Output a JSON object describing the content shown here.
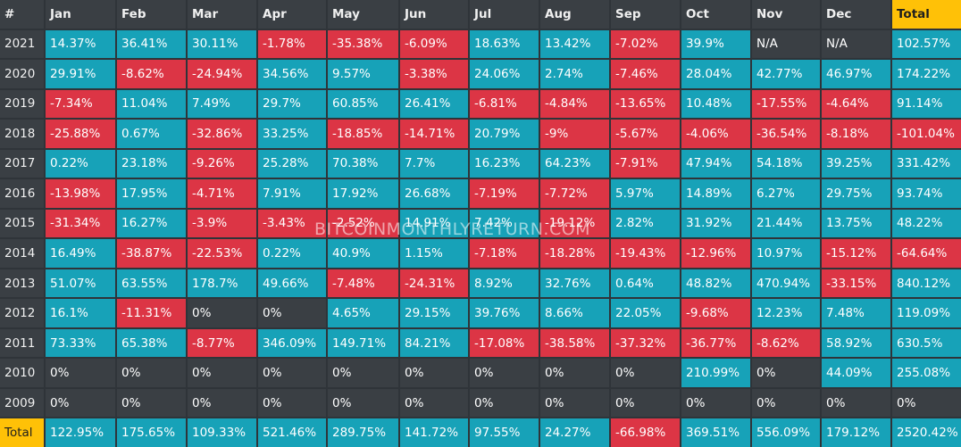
{
  "chart_data": {
    "type": "table",
    "header": [
      "#",
      "Jan",
      "Feb",
      "Mar",
      "Apr",
      "May",
      "Jun",
      "Jul",
      "Aug",
      "Sep",
      "Oct",
      "Nov",
      "Dec",
      "Total"
    ],
    "rows": [
      {
        "label": "2021",
        "values": [
          "14.37%",
          "36.41%",
          "30.11%",
          "-1.78%",
          "-35.38%",
          "-6.09%",
          "18.63%",
          "13.42%",
          "-7.02%",
          "39.9%",
          "N/A",
          "N/A",
          "102.57%"
        ]
      },
      {
        "label": "2020",
        "values": [
          "29.91%",
          "-8.62%",
          "-24.94%",
          "34.56%",
          "9.57%",
          "-3.38%",
          "24.06%",
          "2.74%",
          "-7.46%",
          "28.04%",
          "42.77%",
          "46.97%",
          "174.22%"
        ]
      },
      {
        "label": "2019",
        "values": [
          "-7.34%",
          "11.04%",
          "7.49%",
          "29.7%",
          "60.85%",
          "26.41%",
          "-6.81%",
          "-4.84%",
          "-13.65%",
          "10.48%",
          "-17.55%",
          "-4.64%",
          "91.14%"
        ]
      },
      {
        "label": "2018",
        "values": [
          "-25.88%",
          "0.67%",
          "-32.86%",
          "33.25%",
          "-18.85%",
          "-14.71%",
          "20.79%",
          "-9%",
          "-5.67%",
          "-4.06%",
          "-36.54%",
          "-8.18%",
          "-101.04%"
        ]
      },
      {
        "label": "2017",
        "values": [
          "0.22%",
          "23.18%",
          "-9.26%",
          "25.28%",
          "70.38%",
          "7.7%",
          "16.23%",
          "64.23%",
          "-7.91%",
          "47.94%",
          "54.18%",
          "39.25%",
          "331.42%"
        ]
      },
      {
        "label": "2016",
        "values": [
          "-13.98%",
          "17.95%",
          "-4.71%",
          "7.91%",
          "17.92%",
          "26.68%",
          "-7.19%",
          "-7.72%",
          "5.97%",
          "14.89%",
          "6.27%",
          "29.75%",
          "93.74%"
        ]
      },
      {
        "label": "2015",
        "values": [
          "-31.34%",
          "16.27%",
          "-3.9%",
          "-3.43%",
          "-2.52%",
          "14.91%",
          "7.42%",
          "-19.12%",
          "2.82%",
          "31.92%",
          "21.44%",
          "13.75%",
          "48.22%"
        ]
      },
      {
        "label": "2014",
        "values": [
          "16.49%",
          "-38.87%",
          "-22.53%",
          "0.22%",
          "40.9%",
          "1.15%",
          "-7.18%",
          "-18.28%",
          "-19.43%",
          "-12.96%",
          "10.97%",
          "-15.12%",
          "-64.64%"
        ]
      },
      {
        "label": "2013",
        "values": [
          "51.07%",
          "63.55%",
          "178.7%",
          "49.66%",
          "-7.48%",
          "-24.31%",
          "8.92%",
          "32.76%",
          "0.64%",
          "48.82%",
          "470.94%",
          "-33.15%",
          "840.12%"
        ]
      },
      {
        "label": "2012",
        "values": [
          "16.1%",
          "-11.31%",
          "0%",
          "0%",
          "4.65%",
          "29.15%",
          "39.76%",
          "8.66%",
          "22.05%",
          "-9.68%",
          "12.23%",
          "7.48%",
          "119.09%"
        ]
      },
      {
        "label": "2011",
        "values": [
          "73.33%",
          "65.38%",
          "-8.77%",
          "346.09%",
          "149.71%",
          "84.21%",
          "-17.08%",
          "-38.58%",
          "-37.32%",
          "-36.77%",
          "-8.62%",
          "58.92%",
          "630.5%"
        ]
      },
      {
        "label": "2010",
        "values": [
          "0%",
          "0%",
          "0%",
          "0%",
          "0%",
          "0%",
          "0%",
          "0%",
          "0%",
          "210.99%",
          "0%",
          "44.09%",
          "255.08%"
        ]
      },
      {
        "label": "2009",
        "values": [
          "0%",
          "0%",
          "0%",
          "0%",
          "0%",
          "0%",
          "0%",
          "0%",
          "0%",
          "0%",
          "0%",
          "0%",
          "0%"
        ]
      },
      {
        "label": "Total",
        "values": [
          "122.95%",
          "175.65%",
          "109.33%",
          "521.46%",
          "289.75%",
          "141.72%",
          "97.55%",
          "24.27%",
          "-66.98%",
          "369.51%",
          "556.09%",
          "179.12%",
          "2520.42%"
        ]
      }
    ],
    "colors": {
      "positive": "#17a2b8",
      "negative": "#dc3545",
      "neutral": "#3a3f44",
      "total_highlight": "#ffc107",
      "background": "#2f3439"
    }
  },
  "watermark": "BITCOINMONTHLYRETURN.COM"
}
